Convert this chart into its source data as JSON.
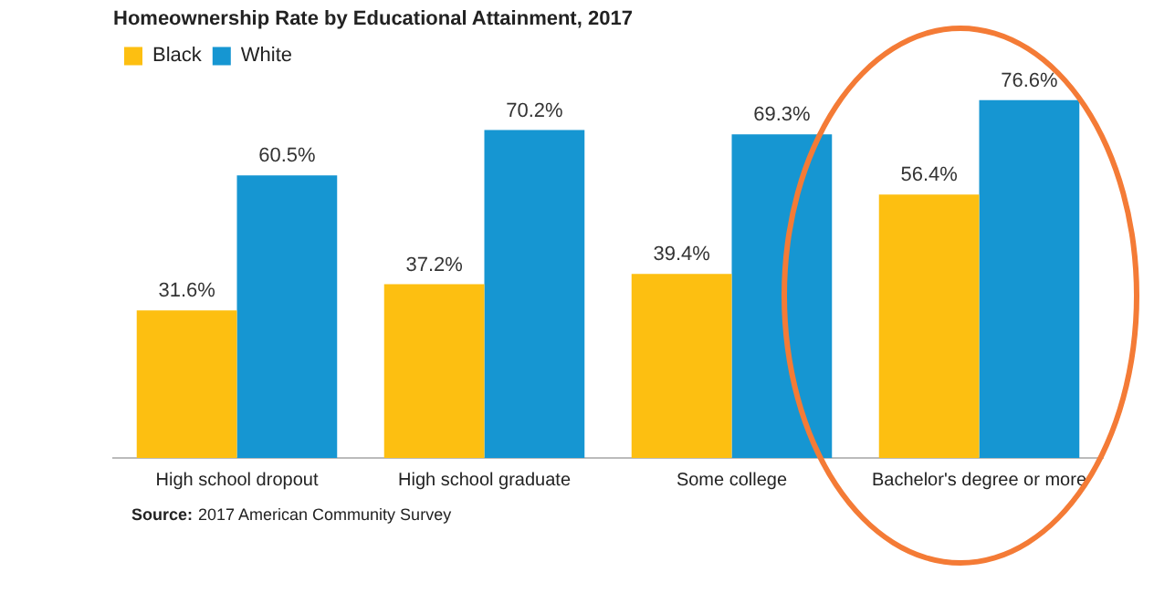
{
  "chart_data": {
    "type": "bar",
    "title": "Homeownership Rate by Educational Attainment, 2017",
    "categories": [
      "High school dropout",
      "High school graduate",
      "Some college",
      "Bachelor's degree or more"
    ],
    "series": [
      {
        "name": "Black",
        "color": "#fdbf11",
        "values": [
          31.6,
          37.2,
          39.4,
          56.4
        ],
        "value_labels": [
          "31.6%",
          "37.2%",
          "39.4%",
          "56.4%"
        ]
      },
      {
        "name": "White",
        "color": "#1696d2",
        "values": [
          60.5,
          70.2,
          69.3,
          76.6
        ],
        "value_labels": [
          "60.5%",
          "70.2%",
          "69.3%",
          "76.6%"
        ]
      }
    ],
    "grid": false,
    "legend": "top left",
    "annotations": [
      "Source: 2017 American Community Survey"
    ]
  }
}
